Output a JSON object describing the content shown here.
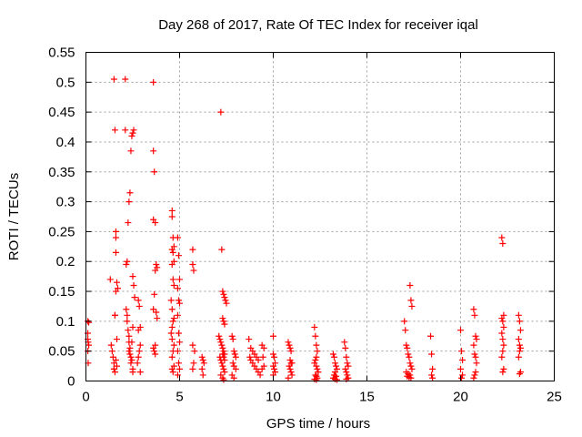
{
  "chart_data": {
    "type": "scatter",
    "title": "Day 268 of 2017, Rate Of TEC Index for receiver iqal",
    "xlabel": "GPS time / hours",
    "ylabel": "ROTI / TECUs",
    "xlim": [
      0,
      25
    ],
    "ylim": [
      0,
      0.55
    ],
    "xticks": [
      "0",
      "5",
      "10",
      "15",
      "20",
      "25"
    ],
    "yticks": [
      "0",
      "0.05",
      "0.1",
      "0.15",
      "0.2",
      "0.25",
      "0.3",
      "0.35",
      "0.4",
      "0.45",
      "0.5",
      "0.55"
    ],
    "grid": true,
    "marker": "+",
    "color": "#ff0000",
    "series": [
      {
        "x": [
          0.1,
          0.1,
          0.1,
          0.12,
          0.15,
          0.15,
          0.1,
          0.12,
          1.3,
          1.35,
          1.4,
          1.45,
          1.5,
          1.5,
          1.55,
          1.55,
          1.6,
          1.6,
          1.65,
          1.6,
          1.55,
          1.5,
          1.6,
          1.65,
          1.7,
          1.5,
          1.6,
          1.55,
          1.65,
          2.1,
          2.1,
          2.15,
          2.2,
          2.2,
          2.25,
          2.3,
          2.3,
          2.35,
          2.3,
          2.35,
          2.4,
          2.45,
          2.4,
          2.5,
          2.5,
          2.55,
          2.5,
          2.45,
          2.4,
          2.35,
          2.3,
          2.25,
          2.2,
          2.15,
          2.5,
          2.55,
          2.6,
          2.5,
          2.45,
          2.8,
          2.85,
          2.9,
          2.8,
          2.9,
          2.85,
          2.8,
          2.75,
          2.9,
          3.6,
          3.6,
          3.65,
          3.6,
          3.7,
          3.75,
          3.8,
          3.7,
          3.65,
          3.6,
          3.75,
          3.8,
          3.7,
          3.6,
          3.65,
          3.7,
          4.6,
          4.6,
          4.65,
          4.7,
          4.6,
          4.65,
          4.7,
          4.6,
          4.65,
          4.7,
          4.55,
          4.6,
          4.7,
          4.65,
          4.6,
          4.55,
          4.6,
          4.7,
          4.65,
          4.6,
          4.7,
          4.6,
          4.65,
          4.9,
          4.95,
          5.0,
          4.9,
          4.95,
          5.0,
          4.9,
          4.95,
          5.0,
          4.9,
          4.95,
          5.0,
          4.9,
          5.7,
          5.7,
          5.75,
          5.7,
          5.8,
          5.75,
          5.7,
          6.2,
          6.25,
          6.3,
          6.2,
          6.25,
          7.1,
          7.15,
          7.2,
          7.25,
          7.3,
          7.35,
          7.4,
          7.15,
          7.2,
          7.25,
          7.3,
          7.35,
          7.4,
          7.3,
          7.35,
          7.4,
          7.2,
          7.25,
          7.3,
          7.35,
          7.4,
          7.45,
          7.5,
          7.3,
          7.35,
          7.4,
          7.2,
          7.3,
          7.35,
          7.8,
          7.85,
          7.9,
          7.95,
          8.0,
          7.85,
          7.9,
          8.0,
          7.8,
          7.9,
          8.7,
          8.75,
          8.8,
          8.9,
          9.0,
          9.1,
          9.2,
          9.3,
          8.8,
          8.9,
          9.0,
          9.1,
          9.2,
          9.4,
          9.5,
          9.45,
          9.5,
          9.4,
          10.0,
          10.0,
          10.05,
          10.1,
          10.0,
          10.05,
          10.1,
          10.0,
          10.8,
          10.85,
          10.9,
          10.95,
          11.0,
          10.85,
          10.9,
          10.95,
          11.0,
          10.8,
          10.9,
          10.95,
          12.2,
          12.25,
          12.3,
          12.35,
          12.3,
          12.25,
          12.2,
          12.3,
          12.35,
          12.4,
          12.25,
          12.3,
          12.35,
          12.2,
          12.3,
          13.2,
          13.25,
          13.3,
          13.35,
          13.4,
          13.3,
          13.25,
          13.35,
          13.2,
          13.3,
          13.4,
          13.8,
          13.85,
          13.9,
          13.95,
          14.0,
          13.85,
          13.9,
          13.95,
          14.0,
          13.9,
          17.0,
          17.05,
          17.1,
          17.15,
          17.2,
          17.25,
          17.3,
          17.35,
          17.4,
          17.1,
          17.2,
          17.3,
          17.15,
          17.25,
          17.35,
          17.3,
          17.35,
          17.4,
          18.4,
          18.45,
          18.5,
          18.45,
          18.5,
          20.0,
          20.05,
          20.1,
          20.0,
          20.1,
          20.05,
          20.7,
          20.75,
          20.8,
          20.85,
          20.7,
          20.75,
          20.8,
          20.85,
          20.8,
          20.75,
          20.7,
          22.2,
          22.25,
          22.3,
          22.2,
          22.25,
          22.3,
          22.2,
          22.25,
          22.3,
          22.25,
          22.2,
          22.3,
          22.25,
          23.1,
          23.15,
          23.2,
          23.1,
          23.15,
          23.2,
          23.15,
          23.1,
          23.2,
          23.15
        ],
        "y": [
          0.1,
          0.08,
          0.07,
          0.065,
          0.06,
          0.098,
          0.05,
          0.03,
          0.17,
          0.06,
          0.05,
          0.04,
          0.03,
          0.02,
          0.015,
          0.11,
          0.24,
          0.25,
          0.165,
          0.15,
          0.42,
          0.505,
          0.215,
          0.07,
          0.155,
          0.02,
          0.035,
          0.11,
          0.025,
          0.505,
          0.42,
          0.12,
          0.11,
          0.1,
          0.085,
          0.075,
          0.065,
          0.055,
          0.05,
          0.045,
          0.04,
          0.035,
          0.03,
          0.02,
          0.015,
          0.42,
          0.415,
          0.41,
          0.385,
          0.315,
          0.3,
          0.265,
          0.2,
          0.195,
          0.175,
          0.16,
          0.14,
          0.09,
          0.065,
          0.135,
          0.125,
          0.09,
          0.085,
          0.06,
          0.05,
          0.04,
          0.03,
          0.015,
          0.5,
          0.385,
          0.35,
          0.27,
          0.265,
          0.195,
          0.19,
          0.185,
          0.145,
          0.12,
          0.115,
          0.105,
          0.06,
          0.055,
          0.05,
          0.045,
          0.285,
          0.275,
          0.24,
          0.225,
          0.22,
          0.215,
          0.2,
          0.195,
          0.17,
          0.16,
          0.135,
          0.12,
          0.105,
          0.1,
          0.09,
          0.08,
          0.07,
          0.06,
          0.05,
          0.04,
          0.025,
          0.02,
          0.015,
          0.24,
          0.21,
          0.17,
          0.155,
          0.135,
          0.13,
          0.11,
          0.08,
          0.065,
          0.05,
          0.03,
          0.02,
          0.01,
          0.22,
          0.195,
          0.185,
          0.06,
          0.05,
          0.03,
          0.02,
          0.04,
          0.035,
          0.03,
          0.02,
          0.01,
          0.075,
          0.07,
          0.065,
          0.06,
          0.055,
          0.05,
          0.045,
          0.04,
          0.035,
          0.03,
          0.025,
          0.02,
          0.015,
          0.105,
          0.1,
          0.095,
          0.45,
          0.22,
          0.15,
          0.145,
          0.14,
          0.135,
          0.13,
          0.045,
          0.04,
          0.035,
          0.01,
          0.005,
          0.002,
          0.075,
          0.07,
          0.05,
          0.045,
          0.04,
          0.03,
          0.025,
          0.02,
          0.01,
          0.005,
          0.07,
          0.04,
          0.035,
          0.03,
          0.025,
          0.02,
          0.015,
          0.01,
          0.055,
          0.05,
          0.045,
          0.04,
          0.035,
          0.06,
          0.055,
          0.04,
          0.025,
          0.02,
          0.075,
          0.045,
          0.04,
          0.03,
          0.025,
          0.02,
          0.015,
          0.01,
          0.065,
          0.06,
          0.055,
          0.05,
          0.03,
          0.025,
          0.02,
          0.015,
          0.01,
          0.005,
          0.035,
          0.03,
          0.09,
          0.075,
          0.06,
          0.05,
          0.04,
          0.035,
          0.03,
          0.025,
          0.02,
          0.015,
          0.01,
          0.008,
          0.005,
          0.003,
          0.002,
          0.045,
          0.04,
          0.03,
          0.025,
          0.02,
          0.015,
          0.01,
          0.008,
          0.005,
          0.003,
          0.002,
          0.065,
          0.055,
          0.04,
          0.03,
          0.025,
          0.02,
          0.015,
          0.01,
          0.005,
          0.003,
          0.1,
          0.085,
          0.06,
          0.055,
          0.045,
          0.04,
          0.03,
          0.025,
          0.02,
          0.015,
          0.012,
          0.01,
          0.008,
          0.006,
          0.005,
          0.16,
          0.135,
          0.125,
          0.075,
          0.045,
          0.02,
          0.01,
          0.005,
          0.085,
          0.05,
          0.035,
          0.02,
          0.01,
          0.005,
          0.12,
          0.11,
          0.075,
          0.07,
          0.06,
          0.045,
          0.04,
          0.03,
          0.015,
          0.01,
          0.005,
          0.24,
          0.23,
          0.11,
          0.105,
          0.1,
          0.09,
          0.08,
          0.07,
          0.06,
          0.05,
          0.04,
          0.02,
          0.015,
          0.11,
          0.1,
          0.085,
          0.07,
          0.06,
          0.055,
          0.05,
          0.04,
          0.015,
          0.012
        ]
      }
    ]
  }
}
